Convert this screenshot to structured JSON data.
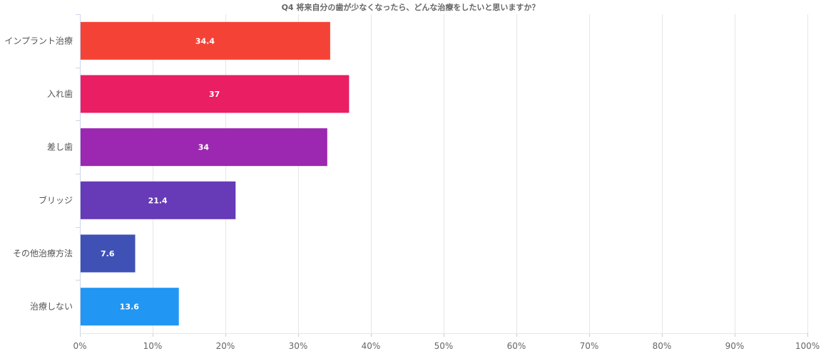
{
  "chart_data": {
    "type": "bar",
    "orientation": "horizontal",
    "title": "Q4 将来自分の歯が少なくなったら、どんな治療をしたいと思いますか？",
    "categories": [
      "インプラント治療",
      "入れ歯",
      "差し歯",
      "ブリッジ",
      "その他治療方法",
      "治療しない"
    ],
    "values": [
      34.4,
      37,
      34,
      21.4,
      7.6,
      13.6
    ],
    "data_labels": [
      "34.4",
      "37",
      "34",
      "21.4",
      "7.6",
      "13.6"
    ],
    "colors": [
      "#f44336",
      "#e91e63",
      "#9c27b0",
      "#673ab7",
      "#3f51b5",
      "#2196f3"
    ],
    "xlim": [
      0,
      100
    ],
    "x_ticks": [
      0,
      10,
      20,
      30,
      40,
      50,
      60,
      70,
      80,
      90,
      100
    ],
    "x_tick_labels": [
      "0%",
      "10%",
      "20%",
      "30%",
      "40%",
      "50%",
      "60%",
      "70%",
      "80%",
      "90%",
      "100%"
    ],
    "grid": true,
    "legend": "none"
  }
}
